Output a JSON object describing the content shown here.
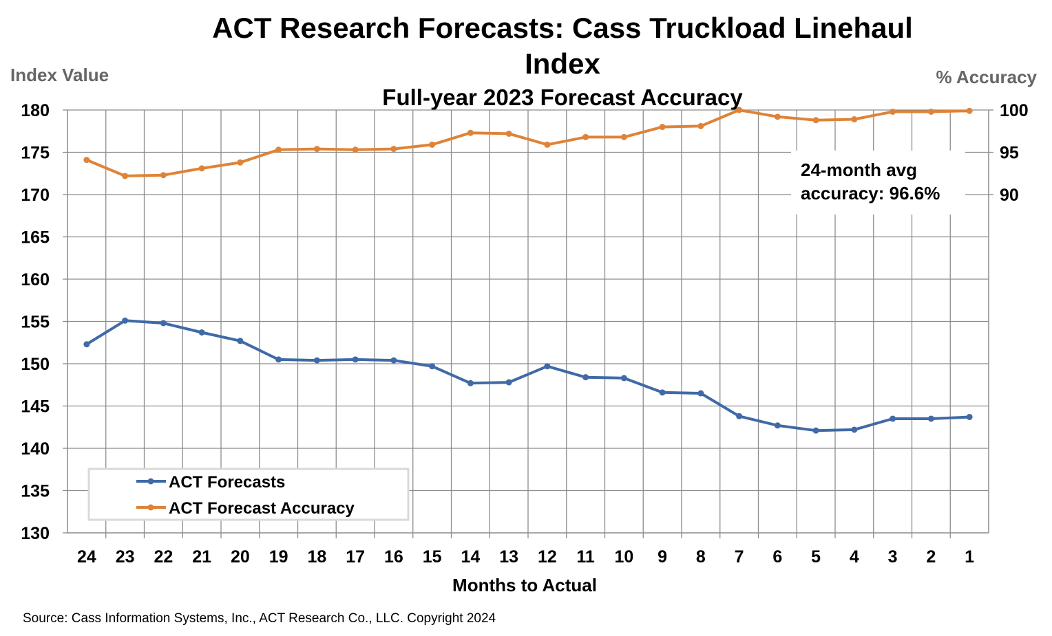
{
  "chart_data": {
    "type": "line",
    "title_line1": "ACT Research Forecasts: Cass Truckload Linehaul",
    "title_line2": "Index",
    "subtitle": "Full-year 2023 Forecast Accuracy",
    "ylabel_left": "Index Value",
    "ylabel_right": "% Accuracy",
    "xlabel": "Months to Actual",
    "source": "Source: Cass Information Systems, Inc., ACT Research Co., LLC. Copyright 2024",
    "annotation_line1": "24-month avg",
    "annotation_line2": "accuracy: 96.6%",
    "categories": [
      "24",
      "23",
      "22",
      "21",
      "20",
      "19",
      "18",
      "17",
      "16",
      "15",
      "14",
      "13",
      "12",
      "11",
      "10",
      "9",
      "8",
      "7",
      "6",
      "5",
      "4",
      "3",
      "2",
      "1"
    ],
    "left_axis": {
      "min": 130,
      "max": 180,
      "step": 5,
      "ticks": [
        "130",
        "135",
        "140",
        "145",
        "150",
        "155",
        "160",
        "165",
        "170",
        "175",
        "180"
      ]
    },
    "right_axis": {
      "min": 50,
      "max": 100,
      "ticks": [
        {
          "value": 90,
          "label": "90"
        },
        {
          "value": 95,
          "label": "95"
        },
        {
          "value": 100,
          "label": "100"
        }
      ]
    },
    "series": [
      {
        "name": "ACT Forecasts",
        "axis": "left",
        "color": "#3f6aa6",
        "values": [
          152.3,
          155.1,
          154.8,
          153.7,
          152.7,
          150.5,
          150.4,
          150.5,
          150.4,
          149.7,
          147.7,
          147.8,
          149.7,
          148.4,
          148.3,
          146.6,
          146.5,
          143.8,
          142.7,
          142.1,
          142.2,
          143.5,
          143.5,
          143.7
        ]
      },
      {
        "name": "ACT Forecast Accuracy",
        "axis": "right",
        "color": "#de8338",
        "values": [
          94.1,
          92.2,
          92.3,
          93.1,
          93.8,
          95.3,
          95.4,
          95.3,
          95.4,
          95.9,
          97.3,
          97.2,
          95.9,
          96.8,
          96.8,
          98.0,
          98.1,
          100.0,
          99.2,
          98.8,
          98.9,
          99.8,
          99.8,
          99.9
        ]
      }
    ]
  }
}
